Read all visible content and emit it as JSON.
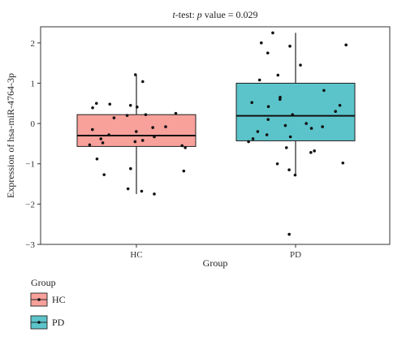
{
  "chart_data": {
    "type": "box",
    "title_prefix": "t",
    "title_rest": "-test: ",
    "title_p": "p",
    "title_suffix": " value = 0.029",
    "xlabel": "Group",
    "ylabel": "Expression of hsa-miR-4764-3p",
    "ylim": [
      -3,
      2.4
    ],
    "yticks": [
      -3,
      -2,
      -1,
      0,
      1,
      2
    ],
    "ytick_labels": [
      "−3",
      "−2",
      "−1",
      "0",
      "1",
      "2"
    ],
    "categories": [
      "HC",
      "PD"
    ],
    "legend": {
      "title": "Group",
      "placement": "bottom-left",
      "entries": [
        "HC",
        "PD"
      ]
    },
    "colors": {
      "HC": "#F8A09A",
      "PD": "#5BC4CA",
      "point": "#111111",
      "line": "#222222"
    },
    "boxes": [
      {
        "name": "HC",
        "q1": -0.57,
        "median": -0.3,
        "q3": 0.22,
        "whisker_low": -1.75,
        "whisker_high": 1.2
      },
      {
        "name": "PD",
        "q1": -0.43,
        "median": 0.19,
        "q3": 1.0,
        "whisker_low": -1.28,
        "whisker_high": 2.25
      }
    ],
    "points": [
      {
        "group": "HC",
        "values": [
          1.21,
          1.04,
          0.5,
          0.48,
          0.45,
          0.41,
          0.39,
          0.25,
          0.22,
          0.2,
          0.14,
          -0.08,
          -0.1,
          -0.15,
          -0.2,
          -0.28,
          -0.33,
          -0.38,
          -0.42,
          -0.45,
          -0.48,
          -0.53,
          -0.55,
          -0.6,
          -0.88,
          -1.12,
          -1.18,
          -1.27,
          -1.62,
          -1.68,
          -1.75
        ]
      },
      {
        "group": "PD",
        "values": [
          2.25,
          2.0,
          1.95,
          1.92,
          1.75,
          1.45,
          1.2,
          1.08,
          0.82,
          0.65,
          0.6,
          0.52,
          0.45,
          0.42,
          0.3,
          0.22,
          0.1,
          0.0,
          -0.05,
          -0.08,
          -0.12,
          -0.2,
          -0.28,
          -0.33,
          -0.38,
          -0.45,
          -0.6,
          -0.68,
          -0.72,
          -0.98,
          -1.0,
          -1.15,
          -1.28,
          -2.75
        ]
      }
    ]
  }
}
